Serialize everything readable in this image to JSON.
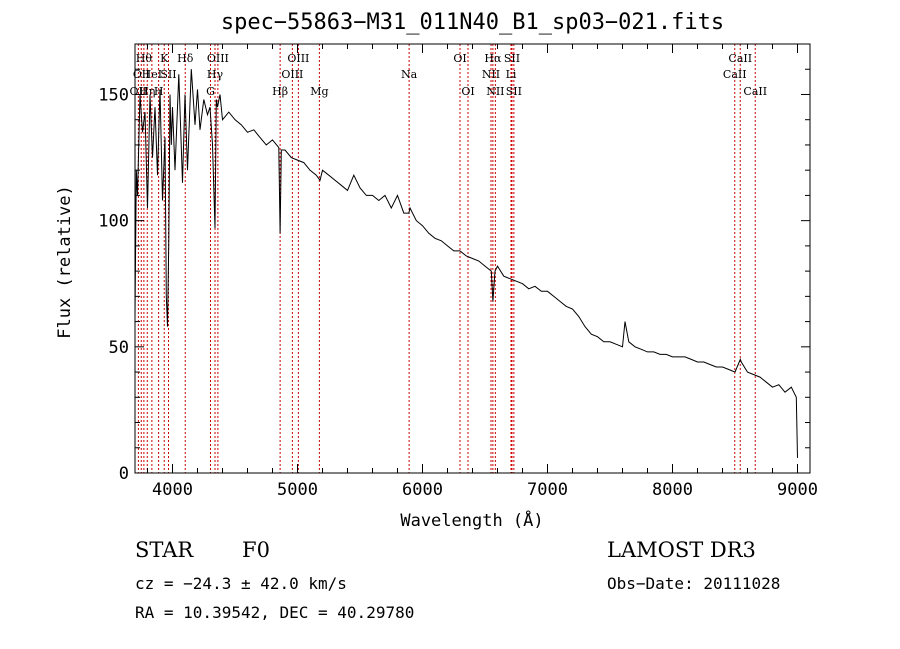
{
  "chart_data": {
    "type": "line",
    "title": "spec−55863−M31_011N40_B1_sp03−021.fits",
    "xlabel": "Wavelength (Å)",
    "ylabel": "Flux (relative)",
    "xlim": [
      3700,
      9100
    ],
    "ylim": [
      0,
      170
    ],
    "xticks": [
      4000,
      5000,
      6000,
      7000,
      8000,
      9000
    ],
    "yticks": [
      0,
      50,
      100,
      150
    ],
    "grid": false,
    "line_color": "#000000",
    "marker_color": "#cc0000",
    "series": [
      {
        "name": "Flux",
        "x": [
          3700,
          3710,
          3720,
          3740,
          3760,
          3780,
          3800,
          3820,
          3840,
          3860,
          3880,
          3900,
          3920,
          3940,
          3950,
          3960,
          3970,
          3980,
          3990,
          4000,
          4020,
          4050,
          4080,
          4100,
          4120,
          4150,
          4180,
          4200,
          4220,
          4250,
          4280,
          4300,
          4320,
          4340,
          4350,
          4360,
          4380,
          4400,
          4450,
          4500,
          4550,
          4600,
          4650,
          4700,
          4750,
          4800,
          4850,
          4861,
          4870,
          4900,
          4950,
          5000,
          5050,
          5100,
          5150,
          5180,
          5200,
          5250,
          5300,
          5350,
          5400,
          5450,
          5500,
          5550,
          5600,
          5650,
          5700,
          5750,
          5800,
          5850,
          5890,
          5900,
          5950,
          6000,
          6050,
          6100,
          6150,
          6200,
          6250,
          6300,
          6350,
          6400,
          6450,
          6500,
          6550,
          6563,
          6580,
          6600,
          6650,
          6700,
          6750,
          6800,
          6850,
          6900,
          6950,
          7000,
          7050,
          7100,
          7150,
          7200,
          7250,
          7300,
          7350,
          7400,
          7450,
          7500,
          7550,
          7600,
          7620,
          7650,
          7700,
          7750,
          7800,
          7850,
          7900,
          7950,
          8000,
          8050,
          8100,
          8150,
          8200,
          8250,
          8300,
          8350,
          8400,
          8450,
          8500,
          8542,
          8550,
          8600,
          8650,
          8700,
          8750,
          8800,
          8850,
          8900,
          8950,
          8990,
          9000
        ],
        "values": [
          62,
          120,
          110,
          150,
          135,
          143,
          105,
          150,
          125,
          145,
          118,
          152,
          108,
          133,
          70,
          58,
          92,
          150,
          130,
          145,
          120,
          158,
          115,
          150,
          120,
          160,
          138,
          152,
          136,
          148,
          142,
          145,
          130,
          97,
          148,
          145,
          150,
          140,
          143,
          140,
          138,
          135,
          136,
          133,
          130,
          132,
          129,
          95,
          128,
          128,
          125,
          124,
          123,
          120,
          118,
          116,
          120,
          118,
          116,
          114,
          112,
          118,
          113,
          110,
          110,
          108,
          110,
          105,
          110,
          103,
          103,
          105,
          100,
          98,
          95,
          93,
          92,
          90,
          88,
          88,
          86,
          85,
          84,
          82,
          80,
          68,
          80,
          82,
          78,
          77,
          76,
          75,
          73,
          74,
          72,
          72,
          70,
          68,
          66,
          65,
          62,
          58,
          55,
          54,
          52,
          52,
          51,
          50,
          60,
          52,
          50,
          49,
          48,
          48,
          47,
          47,
          46,
          46,
          46,
          45,
          44,
          44,
          43,
          42,
          42,
          41,
          40,
          45,
          44,
          40,
          39,
          38,
          36,
          34,
          35,
          32,
          34,
          30,
          6
        ]
      }
    ],
    "line_markers": [
      {
        "wavelength": 3727,
        "label": "OII",
        "row": 3
      },
      {
        "wavelength": 3750,
        "label": "O I",
        "row": 2
      },
      {
        "wavelength": 3771,
        "label": "Hθ",
        "row": 1
      },
      {
        "wavelength": 3798,
        "label": "Hη",
        "row": 3
      },
      {
        "wavelength": 3835,
        "label": "HeI",
        "row": 2
      },
      {
        "wavelength": 3889,
        "label": "H",
        "row": 3
      },
      {
        "wavelength": 3934,
        "label": "K",
        "row": 1
      },
      {
        "wavelength": 3968,
        "label": "SII",
        "row": 2
      },
      {
        "wavelength": 4102,
        "label": "Hδ",
        "row": 1
      },
      {
        "wavelength": 4304,
        "label": "G",
        "row": 3
      },
      {
        "wavelength": 4340,
        "label": "Hγ",
        "row": 2
      },
      {
        "wavelength": 4363,
        "label": "OIII",
        "row": 1
      },
      {
        "wavelength": 4861,
        "label": "Hβ",
        "row": 3
      },
      {
        "wavelength": 4959,
        "label": "OIII",
        "row": 2
      },
      {
        "wavelength": 5007,
        "label": "OIII",
        "row": 1
      },
      {
        "wavelength": 5175,
        "label": "Mg",
        "row": 3
      },
      {
        "wavelength": 5893,
        "label": "Na",
        "row": 2
      },
      {
        "wavelength": 6300,
        "label": "OI",
        "row": 1
      },
      {
        "wavelength": 6364,
        "label": "OI",
        "row": 3
      },
      {
        "wavelength": 6548,
        "label": "NII",
        "row": 2
      },
      {
        "wavelength": 6563,
        "label": "Hα",
        "row": 1
      },
      {
        "wavelength": 6583,
        "label": "NII",
        "row": 3
      },
      {
        "wavelength": 6708,
        "label": "Li",
        "row": 2
      },
      {
        "wavelength": 6716,
        "label": "SII",
        "row": 1
      },
      {
        "wavelength": 6731,
        "label": "SII",
        "row": 3
      },
      {
        "wavelength": 8498,
        "label": "CaII",
        "row": 2
      },
      {
        "wavelength": 8542,
        "label": "CaII",
        "row": 1
      },
      {
        "wavelength": 8662,
        "label": "CaII",
        "row": 3
      }
    ]
  },
  "info": {
    "class": "STAR",
    "subclass": "F0",
    "cz": "cz = −24.3 ± 42.0 km/s",
    "coords": "RA =  10.39542, DEC =  40.29780",
    "survey": "LAMOST DR3",
    "obs_date": "Obs−Date: 20111028"
  }
}
